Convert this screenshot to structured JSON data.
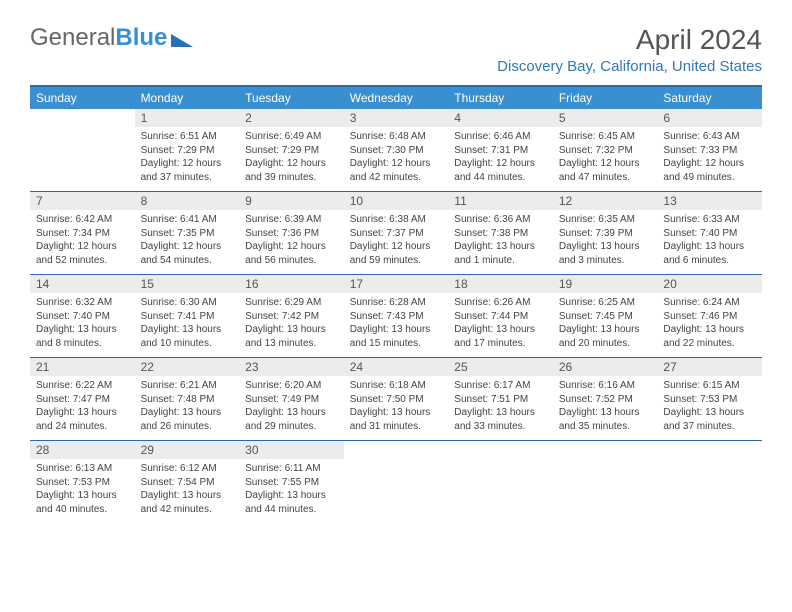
{
  "brand": {
    "word1": "General",
    "word2": "Blue"
  },
  "title": "April 2024",
  "subtitle": "Discovery Bay, California, United States",
  "colors": {
    "header_bar": "#3a8fd0",
    "border": "#2c6aa6",
    "daynum_bg": "#ececec",
    "subtitle_color": "#3277b7",
    "text": "#444444"
  },
  "weekdays": [
    "Sunday",
    "Monday",
    "Tuesday",
    "Wednesday",
    "Thursday",
    "Friday",
    "Saturday"
  ],
  "weeks": [
    [
      {
        "n": "",
        "l1": "",
        "l2": "",
        "l3": "",
        "l4": "",
        "empty": true
      },
      {
        "n": "1",
        "l1": "Sunrise: 6:51 AM",
        "l2": "Sunset: 7:29 PM",
        "l3": "Daylight: 12 hours",
        "l4": "and 37 minutes."
      },
      {
        "n": "2",
        "l1": "Sunrise: 6:49 AM",
        "l2": "Sunset: 7:29 PM",
        "l3": "Daylight: 12 hours",
        "l4": "and 39 minutes."
      },
      {
        "n": "3",
        "l1": "Sunrise: 6:48 AM",
        "l2": "Sunset: 7:30 PM",
        "l3": "Daylight: 12 hours",
        "l4": "and 42 minutes."
      },
      {
        "n": "4",
        "l1": "Sunrise: 6:46 AM",
        "l2": "Sunset: 7:31 PM",
        "l3": "Daylight: 12 hours",
        "l4": "and 44 minutes."
      },
      {
        "n": "5",
        "l1": "Sunrise: 6:45 AM",
        "l2": "Sunset: 7:32 PM",
        "l3": "Daylight: 12 hours",
        "l4": "and 47 minutes."
      },
      {
        "n": "6",
        "l1": "Sunrise: 6:43 AM",
        "l2": "Sunset: 7:33 PM",
        "l3": "Daylight: 12 hours",
        "l4": "and 49 minutes."
      }
    ],
    [
      {
        "n": "7",
        "l1": "Sunrise: 6:42 AM",
        "l2": "Sunset: 7:34 PM",
        "l3": "Daylight: 12 hours",
        "l4": "and 52 minutes."
      },
      {
        "n": "8",
        "l1": "Sunrise: 6:41 AM",
        "l2": "Sunset: 7:35 PM",
        "l3": "Daylight: 12 hours",
        "l4": "and 54 minutes."
      },
      {
        "n": "9",
        "l1": "Sunrise: 6:39 AM",
        "l2": "Sunset: 7:36 PM",
        "l3": "Daylight: 12 hours",
        "l4": "and 56 minutes."
      },
      {
        "n": "10",
        "l1": "Sunrise: 6:38 AM",
        "l2": "Sunset: 7:37 PM",
        "l3": "Daylight: 12 hours",
        "l4": "and 59 minutes."
      },
      {
        "n": "11",
        "l1": "Sunrise: 6:36 AM",
        "l2": "Sunset: 7:38 PM",
        "l3": "Daylight: 13 hours",
        "l4": "and 1 minute."
      },
      {
        "n": "12",
        "l1": "Sunrise: 6:35 AM",
        "l2": "Sunset: 7:39 PM",
        "l3": "Daylight: 13 hours",
        "l4": "and 3 minutes."
      },
      {
        "n": "13",
        "l1": "Sunrise: 6:33 AM",
        "l2": "Sunset: 7:40 PM",
        "l3": "Daylight: 13 hours",
        "l4": "and 6 minutes."
      }
    ],
    [
      {
        "n": "14",
        "l1": "Sunrise: 6:32 AM",
        "l2": "Sunset: 7:40 PM",
        "l3": "Daylight: 13 hours",
        "l4": "and 8 minutes."
      },
      {
        "n": "15",
        "l1": "Sunrise: 6:30 AM",
        "l2": "Sunset: 7:41 PM",
        "l3": "Daylight: 13 hours",
        "l4": "and 10 minutes."
      },
      {
        "n": "16",
        "l1": "Sunrise: 6:29 AM",
        "l2": "Sunset: 7:42 PM",
        "l3": "Daylight: 13 hours",
        "l4": "and 13 minutes."
      },
      {
        "n": "17",
        "l1": "Sunrise: 6:28 AM",
        "l2": "Sunset: 7:43 PM",
        "l3": "Daylight: 13 hours",
        "l4": "and 15 minutes."
      },
      {
        "n": "18",
        "l1": "Sunrise: 6:26 AM",
        "l2": "Sunset: 7:44 PM",
        "l3": "Daylight: 13 hours",
        "l4": "and 17 minutes."
      },
      {
        "n": "19",
        "l1": "Sunrise: 6:25 AM",
        "l2": "Sunset: 7:45 PM",
        "l3": "Daylight: 13 hours",
        "l4": "and 20 minutes."
      },
      {
        "n": "20",
        "l1": "Sunrise: 6:24 AM",
        "l2": "Sunset: 7:46 PM",
        "l3": "Daylight: 13 hours",
        "l4": "and 22 minutes."
      }
    ],
    [
      {
        "n": "21",
        "l1": "Sunrise: 6:22 AM",
        "l2": "Sunset: 7:47 PM",
        "l3": "Daylight: 13 hours",
        "l4": "and 24 minutes."
      },
      {
        "n": "22",
        "l1": "Sunrise: 6:21 AM",
        "l2": "Sunset: 7:48 PM",
        "l3": "Daylight: 13 hours",
        "l4": "and 26 minutes."
      },
      {
        "n": "23",
        "l1": "Sunrise: 6:20 AM",
        "l2": "Sunset: 7:49 PM",
        "l3": "Daylight: 13 hours",
        "l4": "and 29 minutes."
      },
      {
        "n": "24",
        "l1": "Sunrise: 6:18 AM",
        "l2": "Sunset: 7:50 PM",
        "l3": "Daylight: 13 hours",
        "l4": "and 31 minutes."
      },
      {
        "n": "25",
        "l1": "Sunrise: 6:17 AM",
        "l2": "Sunset: 7:51 PM",
        "l3": "Daylight: 13 hours",
        "l4": "and 33 minutes."
      },
      {
        "n": "26",
        "l1": "Sunrise: 6:16 AM",
        "l2": "Sunset: 7:52 PM",
        "l3": "Daylight: 13 hours",
        "l4": "and 35 minutes."
      },
      {
        "n": "27",
        "l1": "Sunrise: 6:15 AM",
        "l2": "Sunset: 7:53 PM",
        "l3": "Daylight: 13 hours",
        "l4": "and 37 minutes."
      }
    ],
    [
      {
        "n": "28",
        "l1": "Sunrise: 6:13 AM",
        "l2": "Sunset: 7:53 PM",
        "l3": "Daylight: 13 hours",
        "l4": "and 40 minutes."
      },
      {
        "n": "29",
        "l1": "Sunrise: 6:12 AM",
        "l2": "Sunset: 7:54 PM",
        "l3": "Daylight: 13 hours",
        "l4": "and 42 minutes."
      },
      {
        "n": "30",
        "l1": "Sunrise: 6:11 AM",
        "l2": "Sunset: 7:55 PM",
        "l3": "Daylight: 13 hours",
        "l4": "and 44 minutes."
      },
      {
        "n": "",
        "l1": "",
        "l2": "",
        "l3": "",
        "l4": "",
        "empty": true
      },
      {
        "n": "",
        "l1": "",
        "l2": "",
        "l3": "",
        "l4": "",
        "empty": true
      },
      {
        "n": "",
        "l1": "",
        "l2": "",
        "l3": "",
        "l4": "",
        "empty": true
      },
      {
        "n": "",
        "l1": "",
        "l2": "",
        "l3": "",
        "l4": "",
        "empty": true
      }
    ]
  ]
}
